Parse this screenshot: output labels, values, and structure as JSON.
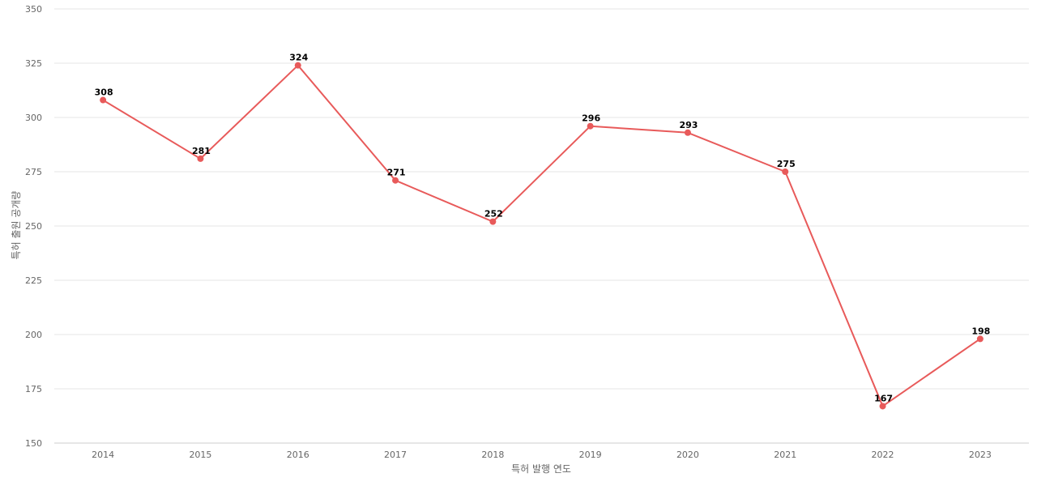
{
  "chart_data": {
    "type": "line",
    "xlabel": "특허 발행 연도",
    "ylabel": "특허 출원 공개량",
    "categories": [
      "2014",
      "2015",
      "2016",
      "2017",
      "2018",
      "2019",
      "2020",
      "2021",
      "2022",
      "2023"
    ],
    "series": [
      {
        "values": [
          308,
          281,
          324,
          271,
          252,
          296,
          293,
          275,
          167,
          198
        ],
        "color": "#e85a5a"
      }
    ],
    "ylim": [
      150,
      350
    ],
    "yticks": [
      150,
      175,
      200,
      225,
      250,
      275,
      300,
      325,
      350
    ],
    "grid": true,
    "data_labels": true,
    "legend": "none"
  }
}
